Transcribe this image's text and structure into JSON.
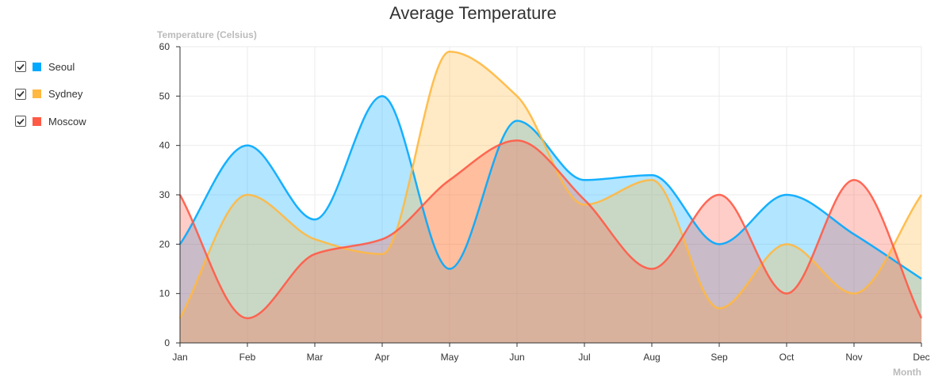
{
  "chart_data": {
    "type": "area",
    "title": "Average Temperature",
    "ylabel": "Temperature (Celsius)",
    "xlabel": "Month",
    "categories": [
      "Jan",
      "Feb",
      "Mar",
      "Apr",
      "May",
      "Jun",
      "Jul",
      "Aug",
      "Sep",
      "Oct",
      "Nov",
      "Dec"
    ],
    "ylim": [
      0,
      60
    ],
    "yticks": [
      0,
      10,
      20,
      30,
      40,
      50,
      60
    ],
    "grid": true,
    "legend_position": "left",
    "series": [
      {
        "name": "Seoul",
        "color": "#00a9ff",
        "values": [
          20,
          40,
          25,
          50,
          15,
          45,
          33,
          34,
          20,
          30,
          22,
          13
        ],
        "checked": true
      },
      {
        "name": "Sydney",
        "color": "#ffb840",
        "values": [
          5,
          30,
          21,
          18,
          59,
          50,
          28,
          33,
          7,
          20,
          10,
          30
        ],
        "checked": true
      },
      {
        "name": "Moscow",
        "color": "#ff5a46",
        "values": [
          30,
          5,
          18,
          21,
          33,
          41,
          29,
          15,
          30,
          10,
          33,
          5
        ],
        "checked": true
      }
    ]
  }
}
